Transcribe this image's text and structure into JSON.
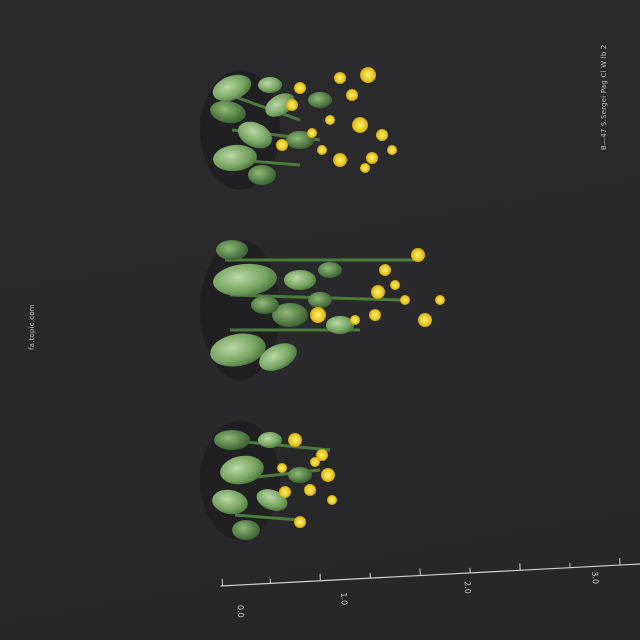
{
  "photo": {
    "subject": "three flowering plants with yellow blossoms on dark background",
    "background_color": "#29292b",
    "leaf_color": "#7fae6a",
    "flower_color": "#e6c21d"
  },
  "labels": {
    "species_caption": "B—47 S.Sergei Pag Cl W lb 2",
    "site_caption": "fa.topic.com"
  },
  "scale_bar": {
    "major_labels": [
      "0.0",
      "1.0",
      "2.0",
      "3.0"
    ]
  }
}
